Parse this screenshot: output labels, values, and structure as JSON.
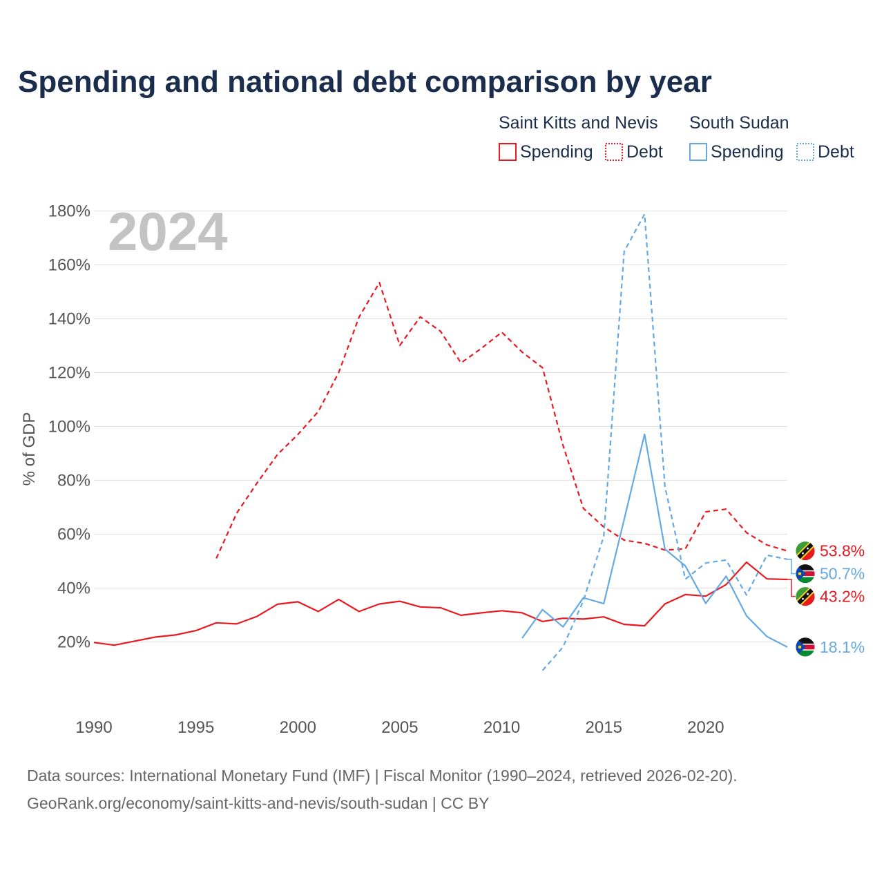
{
  "colors": {
    "red": "#e8191f",
    "blue": "#64a9e3",
    "grid": "#e3e3e3",
    "title": "#1b2d4d",
    "text": "#555555"
  },
  "chart_data": {
    "type": "line",
    "title": "Spending and national debt comparison by year",
    "year_label": "2024",
    "ylabel": "% of GDP",
    "xlabel": "",
    "xlim": [
      1990,
      2024
    ],
    "ylim": [
      0,
      180
    ],
    "x_ticks": [
      "1990",
      "1995",
      "2000",
      "2005",
      "2010",
      "2015",
      "2020"
    ],
    "y_ticks": [
      {
        "v": 20,
        "label": "20%"
      },
      {
        "v": 40,
        "label": "40%"
      },
      {
        "v": 60,
        "label": "60%"
      },
      {
        "v": 80,
        "label": "80%"
      },
      {
        "v": 100,
        "label": "100%"
      },
      {
        "v": 120,
        "label": "120%"
      },
      {
        "v": 140,
        "label": "140%"
      },
      {
        "v": 160,
        "label": "160%"
      },
      {
        "v": 180,
        "label": "180%"
      }
    ],
    "legend": {
      "groups": [
        {
          "name": "Saint Kitts and Nevis",
          "items": [
            "Spending",
            "Debt"
          ],
          "color": "red"
        },
        {
          "name": "South Sudan",
          "items": [
            "Spending",
            "Debt"
          ],
          "color": "blue"
        }
      ]
    },
    "series": [
      {
        "name": "Saint Kitts and Nevis Spending",
        "country": "kn",
        "color": "red",
        "dash": false,
        "end_label": "43.2%",
        "points": [
          [
            1990,
            19.8
          ],
          [
            1991,
            18.8
          ],
          [
            1992,
            20.3
          ],
          [
            1993,
            21.8
          ],
          [
            1994,
            22.6
          ],
          [
            1995,
            24.2
          ],
          [
            1996,
            27.1
          ],
          [
            1997,
            26.7
          ],
          [
            1998,
            29.5
          ],
          [
            1999,
            34.0
          ],
          [
            2000,
            34.9
          ],
          [
            2001,
            31.3
          ],
          [
            2002,
            35.8
          ],
          [
            2003,
            31.3
          ],
          [
            2004,
            34.1
          ],
          [
            2005,
            35.1
          ],
          [
            2006,
            33.0
          ],
          [
            2007,
            32.7
          ],
          [
            2008,
            29.9
          ],
          [
            2009,
            30.8
          ],
          [
            2010,
            31.6
          ],
          [
            2011,
            30.8
          ],
          [
            2012,
            27.6
          ],
          [
            2013,
            28.8
          ],
          [
            2014,
            28.5
          ],
          [
            2015,
            29.3
          ],
          [
            2016,
            26.5
          ],
          [
            2017,
            26.0
          ],
          [
            2018,
            34.1
          ],
          [
            2019,
            37.6
          ],
          [
            2020,
            37.0
          ],
          [
            2021,
            41.3
          ],
          [
            2022,
            49.6
          ],
          [
            2023,
            43.4
          ],
          [
            2024,
            43.2
          ]
        ]
      },
      {
        "name": "Saint Kitts and Nevis Debt",
        "country": "kn",
        "color": "red",
        "dash": true,
        "end_label": "53.8%",
        "points": [
          [
            1996,
            51.0
          ],
          [
            1997,
            67.8
          ],
          [
            1998,
            79.0
          ],
          [
            1999,
            89.6
          ],
          [
            2000,
            97.0
          ],
          [
            2001,
            105.5
          ],
          [
            2002,
            120.0
          ],
          [
            2003,
            140.6
          ],
          [
            2004,
            153.4
          ],
          [
            2005,
            130.1
          ],
          [
            2006,
            140.7
          ],
          [
            2007,
            135.3
          ],
          [
            2008,
            123.6
          ],
          [
            2009,
            129.0
          ],
          [
            2010,
            135.0
          ],
          [
            2011,
            127.6
          ],
          [
            2012,
            121.8
          ],
          [
            2013,
            93.0
          ],
          [
            2014,
            69.6
          ],
          [
            2015,
            62.7
          ],
          [
            2016,
            57.8
          ],
          [
            2017,
            56.6
          ],
          [
            2018,
            54.1
          ],
          [
            2019,
            54.6
          ],
          [
            2020,
            68.3
          ],
          [
            2021,
            69.3
          ],
          [
            2022,
            60.6
          ],
          [
            2023,
            56.0
          ],
          [
            2024,
            53.8
          ]
        ]
      },
      {
        "name": "South Sudan Spending",
        "country": "ss",
        "color": "blue",
        "dash": false,
        "end_label": "18.1%",
        "points": [
          [
            2011,
            21.4
          ],
          [
            2012,
            32.0
          ],
          [
            2013,
            25.6
          ],
          [
            2014,
            36.4
          ],
          [
            2015,
            34.2
          ],
          [
            2016,
            65.5
          ],
          [
            2017,
            97.1
          ],
          [
            2018,
            54.5
          ],
          [
            2019,
            48.2
          ],
          [
            2020,
            34.3
          ],
          [
            2021,
            44.4
          ],
          [
            2022,
            29.7
          ],
          [
            2023,
            22.0
          ],
          [
            2024,
            18.1
          ]
        ]
      },
      {
        "name": "South Sudan Debt",
        "country": "ss",
        "color": "blue",
        "dash": true,
        "end_label": "50.7%",
        "points": [
          [
            2012,
            9.4
          ],
          [
            2013,
            18.1
          ],
          [
            2014,
            35.3
          ],
          [
            2015,
            59.2
          ],
          [
            2016,
            165.0
          ],
          [
            2017,
            178.8
          ],
          [
            2018,
            77.7
          ],
          [
            2019,
            43.3
          ],
          [
            2020,
            49.3
          ],
          [
            2021,
            50.4
          ],
          [
            2022,
            37.4
          ],
          [
            2023,
            52.2
          ],
          [
            2024,
            50.7
          ]
        ]
      }
    ]
  },
  "footer": {
    "source_line1": "Data sources: International Monetary Fund (IMF) | Fiscal Monitor (1990–2024, retrieved 2026-02-20).",
    "source_line2": "GeoRank.org/economy/saint-kitts-and-nevis/south-sudan | CC BY"
  }
}
